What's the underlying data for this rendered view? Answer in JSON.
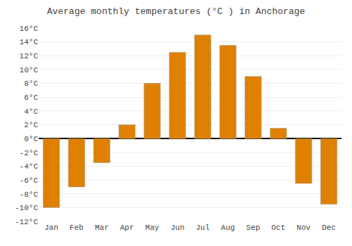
{
  "chart_data": {
    "type": "bar",
    "title": "Average monthly temperatures (°C ) in Anchorage",
    "categories": [
      "Jan",
      "Feb",
      "Mar",
      "Apr",
      "May",
      "Jun",
      "Jul",
      "Aug",
      "Sep",
      "Oct",
      "Nov",
      "Dec"
    ],
    "values": [
      -10,
      -7,
      -3.5,
      2,
      8,
      12.5,
      15,
      13.5,
      9,
      1.5,
      -6.5,
      -9.5
    ],
    "color": "#E08000",
    "ylim": [
      -12,
      16
    ],
    "yticks": [
      {
        "value": -12,
        "label": "-12°C"
      },
      {
        "value": -10,
        "label": "-10°C"
      },
      {
        "value": -8,
        "label": "-8°C"
      },
      {
        "value": -6,
        "label": "-6°C"
      },
      {
        "value": -4,
        "label": "-4°C"
      },
      {
        "value": -2,
        "label": "-2°C"
      },
      {
        "value": 0,
        "label": "0°C"
      },
      {
        "value": 2,
        "label": "2°C"
      },
      {
        "value": 4,
        "label": "4°C"
      },
      {
        "value": 6,
        "label": "6°C"
      },
      {
        "value": 8,
        "label": "8°C"
      },
      {
        "value": 10,
        "label": "10°C"
      },
      {
        "value": 12,
        "label": "12°C"
      },
      {
        "value": 14,
        "label": "14°C"
      },
      {
        "value": 16,
        "label": "16°C"
      }
    ],
    "grid": true
  }
}
